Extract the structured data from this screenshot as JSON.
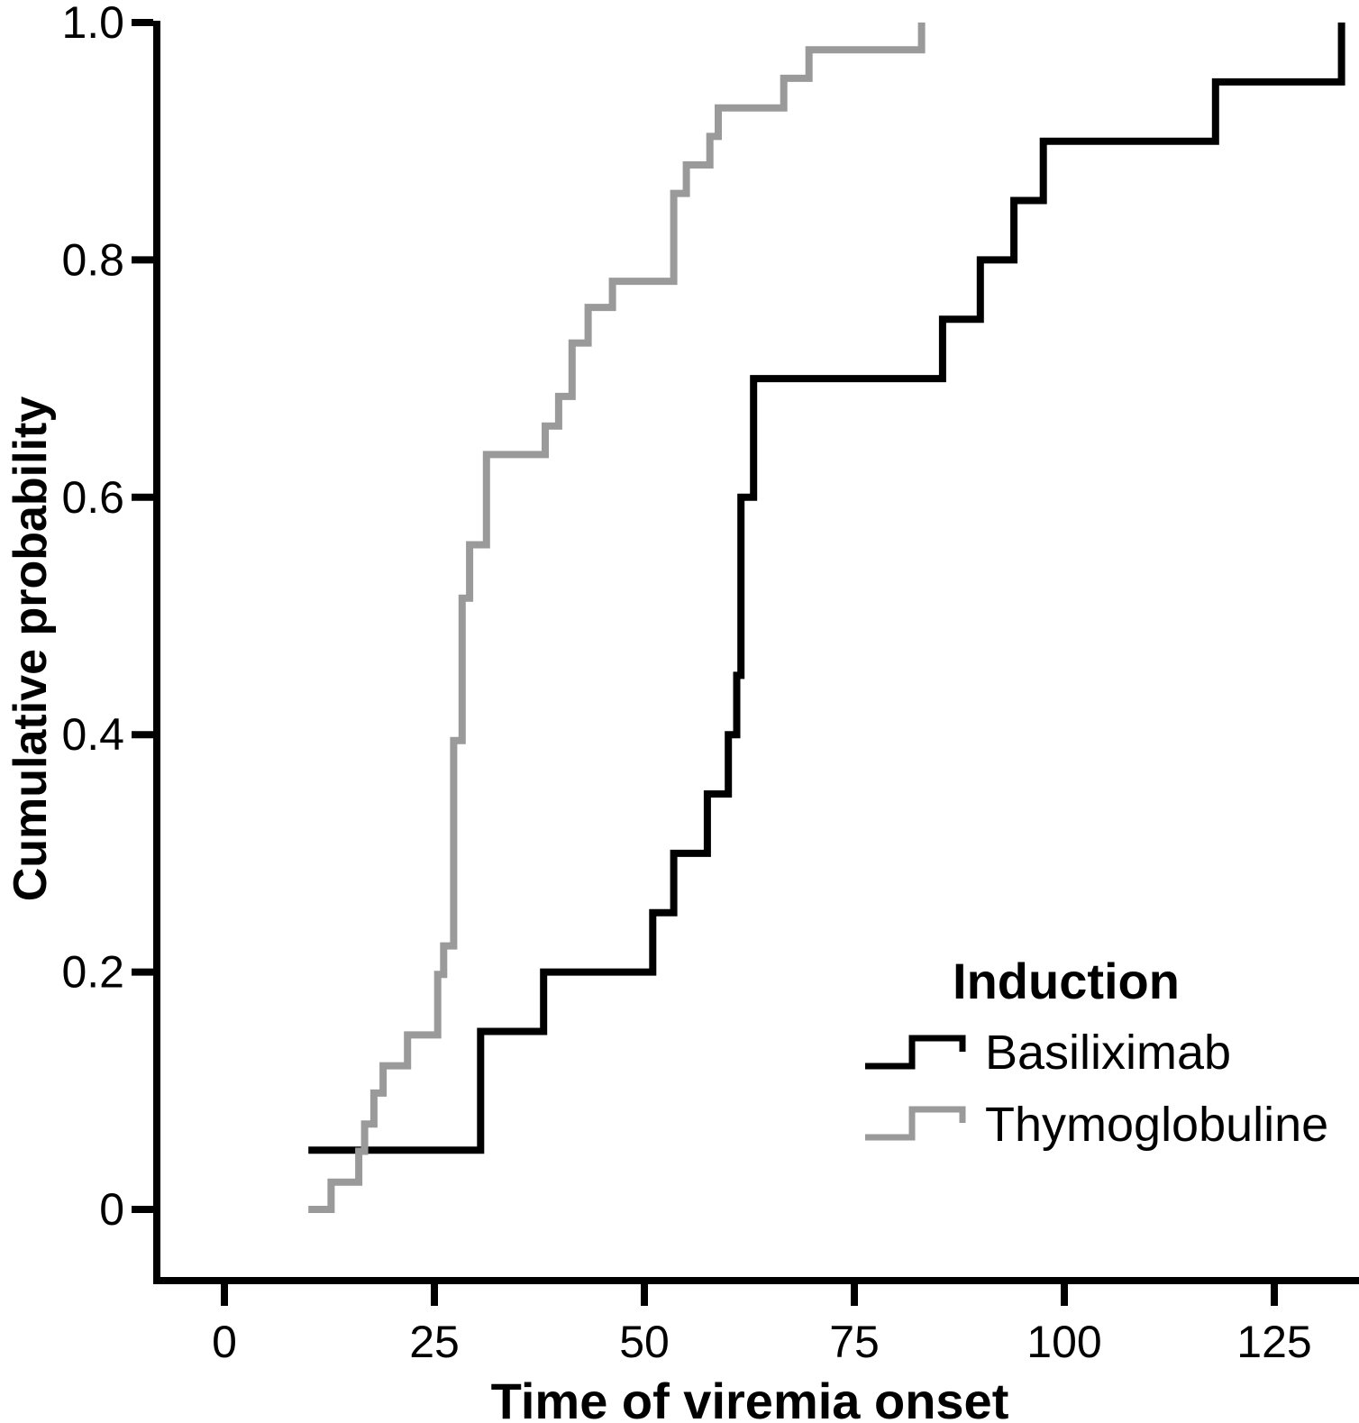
{
  "chart_data": {
    "type": "line",
    "subtype": "step-cumulative-incidence",
    "title": "",
    "xlabel": "Time of viremia onset",
    "ylabel": "Cumulative probability",
    "xlim": [
      -8.5,
      135
    ],
    "ylim": [
      0,
      1.0
    ],
    "grid": false,
    "x_ticks": [
      0,
      25,
      50,
      75,
      100,
      125
    ],
    "x_tick_labels": [
      "0",
      "25",
      "50",
      "75",
      "100",
      "125"
    ],
    "y_ticks": [
      0,
      0.2,
      0.4,
      0.6,
      0.8,
      1.0
    ],
    "y_tick_labels": [
      "0",
      "0.2",
      "0.4",
      "0.6",
      "0.8",
      "1.0"
    ],
    "legend": {
      "title": "Induction",
      "position": "lower-right"
    },
    "series": [
      {
        "name": "Basiliximab",
        "color": "#000000",
        "start": [
          10,
          0.05
        ],
        "steps": [
          [
            30.5,
            0.15
          ],
          [
            38,
            0.2
          ],
          [
            51,
            0.25
          ],
          [
            53.5,
            0.3
          ],
          [
            57.5,
            0.35
          ],
          [
            60,
            0.4
          ],
          [
            61,
            0.45
          ],
          [
            61.5,
            0.6
          ],
          [
            63,
            0.7
          ],
          [
            85.5,
            0.75
          ],
          [
            90,
            0.8
          ],
          [
            94,
            0.85
          ],
          [
            97.5,
            0.9
          ],
          [
            118,
            0.95
          ],
          [
            133,
            1.0
          ]
        ]
      },
      {
        "name": "Thymoglobuline",
        "color": "#9a9a9a",
        "start": [
          10,
          0.0
        ],
        "steps": [
          [
            12.7,
            0.023
          ],
          [
            16,
            0.049
          ],
          [
            16.7,
            0.072
          ],
          [
            17.8,
            0.098
          ],
          [
            18.9,
            0.121
          ],
          [
            21.8,
            0.147
          ],
          [
            25.4,
            0.198
          ],
          [
            26.1,
            0.222
          ],
          [
            27.3,
            0.395
          ],
          [
            28.3,
            0.515
          ],
          [
            29.2,
            0.56
          ],
          [
            31.2,
            0.636
          ],
          [
            38.2,
            0.66
          ],
          [
            39.8,
            0.685
          ],
          [
            41.4,
            0.73
          ],
          [
            43.3,
            0.76
          ],
          [
            46.2,
            0.782
          ],
          [
            53.5,
            0.856
          ],
          [
            55,
            0.88
          ],
          [
            57.8,
            0.904
          ],
          [
            58.8,
            0.928
          ],
          [
            66.6,
            0.953
          ],
          [
            69.6,
            0.977
          ],
          [
            83,
            1.0
          ]
        ]
      }
    ]
  }
}
